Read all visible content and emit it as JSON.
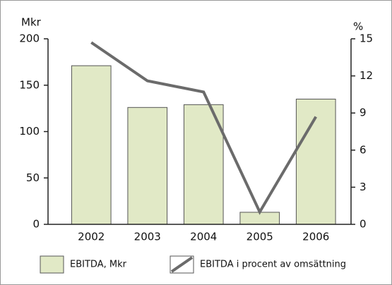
{
  "chart_data": {
    "type": "bar",
    "y_label": "Mkr",
    "y2_label": "%",
    "categories": [
      "2002",
      "2003",
      "2004",
      "2005",
      "2006"
    ],
    "series": [
      {
        "name": "EBITDA, Mkr",
        "type": "bar",
        "color": "#e1e9c6",
        "values": [
          171,
          126,
          129,
          13,
          135
        ]
      },
      {
        "name": "EBITDA i procent av omsättning",
        "type": "line",
        "axis": "y2",
        "color": "#6b6b6b",
        "values": [
          14.7,
          11.6,
          10.7,
          1.0,
          8.7
        ]
      }
    ],
    "ylim": [
      0,
      200
    ],
    "yticks": [
      0,
      50,
      100,
      150,
      200
    ],
    "y2lim": [
      0,
      15
    ],
    "y2ticks": [
      0,
      3,
      6,
      9,
      12,
      15
    ]
  }
}
